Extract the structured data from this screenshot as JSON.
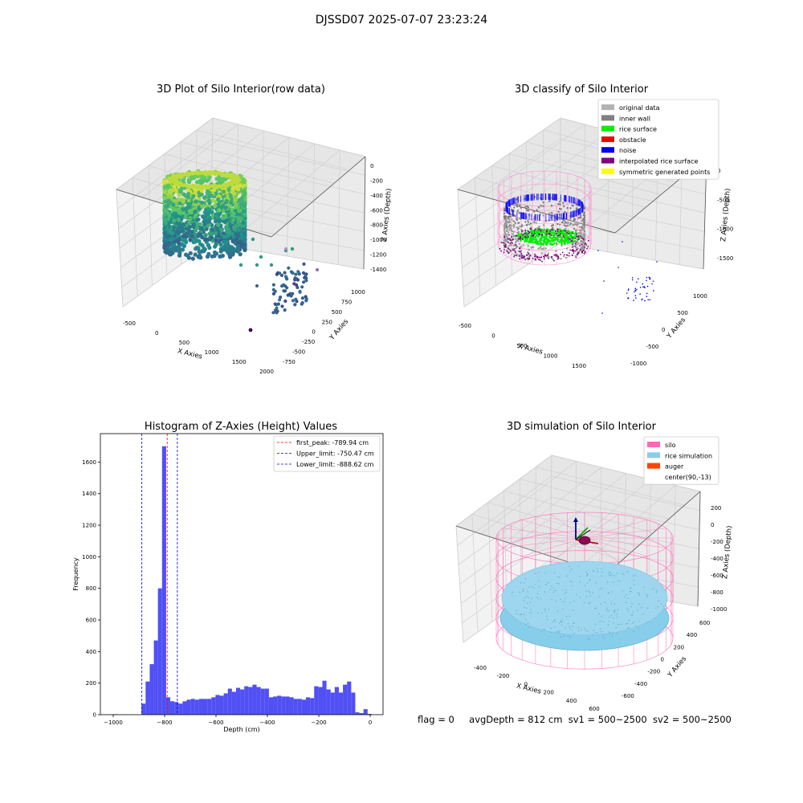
{
  "figure": {
    "supertitle": "DJSSD07 2025-07-07 23:23:24",
    "footer": {
      "flag": "flag = 0",
      "avg": "avgDepth = 812 cm",
      "sv1": "sv1 = 500~2500",
      "sv2": "sv2 = 500~2500"
    }
  },
  "chart_data": [
    {
      "type": "scatter",
      "title": "3D Plot of Silo Interior(row data)",
      "xlabel": "X Axies",
      "ylabel": "Y Axies",
      "zlabel": "Z Axies (Depth)",
      "x_ticks": [
        "-500",
        "0",
        "500",
        "1000",
        "1500",
        "2000"
      ],
      "y_ticks": [
        "-750",
        "-500",
        "-250",
        "0",
        "250",
        "500",
        "750",
        "1000"
      ],
      "z_ticks": [
        "0",
        "-200",
        "-400",
        "-600",
        "-800",
        "-1000",
        "-1200",
        "-1400"
      ],
      "colormap": "viridis",
      "grid": true
    },
    {
      "type": "scatter",
      "title": "3D classify of Silo Interior",
      "xlabel": "X Axies",
      "ylabel": "Y Axies",
      "zlabel": "Z Axies (Depth)",
      "x_ticks": [
        "-500",
        "0",
        "500",
        "1000",
        "1500"
      ],
      "y_ticks": [
        "-1000",
        "-500",
        "0",
        "500",
        "1000"
      ],
      "z_ticks": [
        "0",
        "-500",
        "-1000",
        "-1500"
      ],
      "legend_position": "top-right",
      "legend": [
        {
          "label": "original data",
          "color": "#b3b3b3"
        },
        {
          "label": "inner wall",
          "color": "#808080"
        },
        {
          "label": "rice surface",
          "color": "#00ee00"
        },
        {
          "label": "obstacle",
          "color": "#ee0000"
        },
        {
          "label": "noise",
          "color": "#0000ee"
        },
        {
          "label": "interpolated rice surface",
          "color": "#800080"
        },
        {
          "label": "symmetric generated points",
          "color": "#ffff00"
        }
      ],
      "grid": true
    },
    {
      "type": "bar",
      "title": "Histogram of Z-Axies (Height) Values",
      "xlabel": "Depth (cm)",
      "ylabel": "Frequency",
      "bar_color": "#5050f5",
      "xlim": [
        -1050,
        50
      ],
      "ylim": [
        0,
        1780
      ],
      "x_ticks": [
        -1000,
        -800,
        -600,
        -400,
        -200,
        0
      ],
      "y_ticks": [
        0,
        200,
        400,
        600,
        800,
        1000,
        1200,
        1400,
        1600
      ],
      "bin_width": 16,
      "bins_start": [
        -1002,
        -890,
        -874,
        -858,
        -842,
        -826,
        -810,
        -794,
        -778,
        -762,
        -746,
        -730,
        -714,
        -698,
        -682,
        -666,
        -650,
        -634,
        -618,
        -602,
        -586,
        -570,
        -554,
        -538,
        -522,
        -506,
        -490,
        -474,
        -458,
        -442,
        -426,
        -410,
        -394,
        -378,
        -362,
        -346,
        -330,
        -314,
        -298,
        -282,
        -266,
        -250,
        -234,
        -218,
        -202,
        -186,
        -170,
        -154,
        -138,
        -122,
        -106,
        -90,
        -74,
        -58,
        -42,
        -26,
        -10
      ],
      "values": [
        3,
        70,
        210,
        320,
        470,
        800,
        1700,
        110,
        85,
        80,
        70,
        85,
        95,
        100,
        95,
        100,
        100,
        100,
        110,
        125,
        120,
        135,
        165,
        145,
        170,
        160,
        180,
        175,
        190,
        175,
        165,
        165,
        110,
        115,
        120,
        115,
        115,
        110,
        100,
        100,
        95,
        110,
        105,
        180,
        175,
        215,
        160,
        140,
        175,
        140,
        190,
        210,
        140,
        15,
        10,
        35,
        5
      ],
      "lines": [
        {
          "label": "first_peak: -789.94 cm",
          "x": -789.94,
          "color": "#ff0000"
        },
        {
          "label": "Upper_limit: -750.47 cm",
          "x": -750.47,
          "color": "#0000cc"
        },
        {
          "label": "Lower_limit: -888.62 cm",
          "x": -888.62,
          "color": "#0000cc"
        }
      ],
      "legend_position": "top-right"
    },
    {
      "type": "scatter",
      "title": "3D simulation of Silo Interior",
      "xlabel": "X Axies",
      "ylabel": "Y Axies",
      "zlabel": "Z Axies (Depth)",
      "x_ticks": [
        "-400",
        "-200",
        "0",
        "200",
        "400",
        "600"
      ],
      "y_ticks": [
        "-600",
        "-400",
        "-200",
        "0",
        "200",
        "400",
        "600"
      ],
      "z_ticks": [
        "200",
        "0",
        "-200",
        "-400",
        "-600",
        "-800",
        "-1000"
      ],
      "legend_position": "top-right",
      "legend": [
        {
          "label": "silo",
          "color": "#ff69b4"
        },
        {
          "label": "rice simulation",
          "color": "#87ceeb"
        },
        {
          "label": "auger",
          "color": "#ff4500"
        },
        {
          "label": "center(90,-13)",
          "color": "#ffffff"
        }
      ],
      "grid": true
    }
  ]
}
